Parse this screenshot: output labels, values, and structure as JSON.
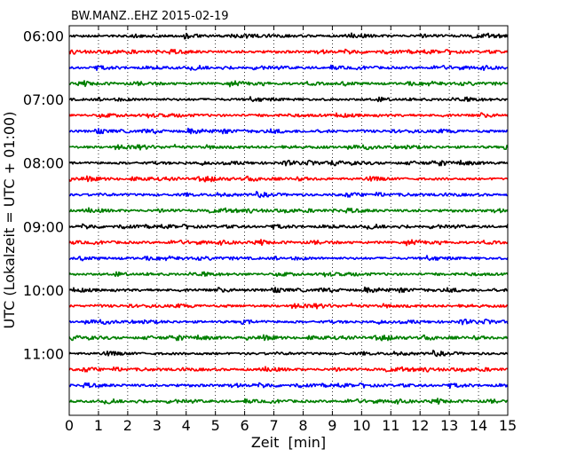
{
  "chart_data": {
    "type": "line",
    "title": "BW.MANZ..EHZ 2015-02-19",
    "xlabel": "Zeit  [min]",
    "ylabel": "UTC (Lokalzeit = UTC + 01:00)",
    "xlim": [
      0,
      15
    ],
    "x_ticks": [
      "0",
      "1",
      "2",
      "3",
      "4",
      "5",
      "6",
      "7",
      "8",
      "9",
      "10",
      "11",
      "12",
      "13",
      "14",
      "15"
    ],
    "y_tick_labels": [
      "06:00",
      "07:00",
      "08:00",
      "09:00",
      "10:00",
      "11:00"
    ],
    "grid": "vertical dotted",
    "trace_colors": [
      "#000000",
      "#ff0000",
      "#0000ff",
      "#007f00"
    ],
    "traces": [
      {
        "start": "06:00",
        "color": "#000000"
      },
      {
        "start": "06:15",
        "color": "#ff0000"
      },
      {
        "start": "06:30",
        "color": "#0000ff"
      },
      {
        "start": "06:45",
        "color": "#007f00"
      },
      {
        "start": "07:00",
        "color": "#000000"
      },
      {
        "start": "07:15",
        "color": "#ff0000"
      },
      {
        "start": "07:30",
        "color": "#0000ff"
      },
      {
        "start": "07:45",
        "color": "#007f00"
      },
      {
        "start": "08:00",
        "color": "#000000"
      },
      {
        "start": "08:15",
        "color": "#ff0000"
      },
      {
        "start": "08:30",
        "color": "#0000ff"
      },
      {
        "start": "08:45",
        "color": "#007f00"
      },
      {
        "start": "09:00",
        "color": "#000000"
      },
      {
        "start": "09:15",
        "color": "#ff0000"
      },
      {
        "start": "09:30",
        "color": "#0000ff"
      },
      {
        "start": "09:45",
        "color": "#007f00"
      },
      {
        "start": "10:00",
        "color": "#000000"
      },
      {
        "start": "10:15",
        "color": "#ff0000"
      },
      {
        "start": "10:30",
        "color": "#0000ff"
      },
      {
        "start": "10:45",
        "color": "#007f00"
      },
      {
        "start": "11:00",
        "color": "#000000"
      },
      {
        "start": "11:15",
        "color": "#ff0000"
      },
      {
        "start": "11:30",
        "color": "#0000ff"
      },
      {
        "start": "11:45",
        "color": "#007f00"
      }
    ]
  }
}
